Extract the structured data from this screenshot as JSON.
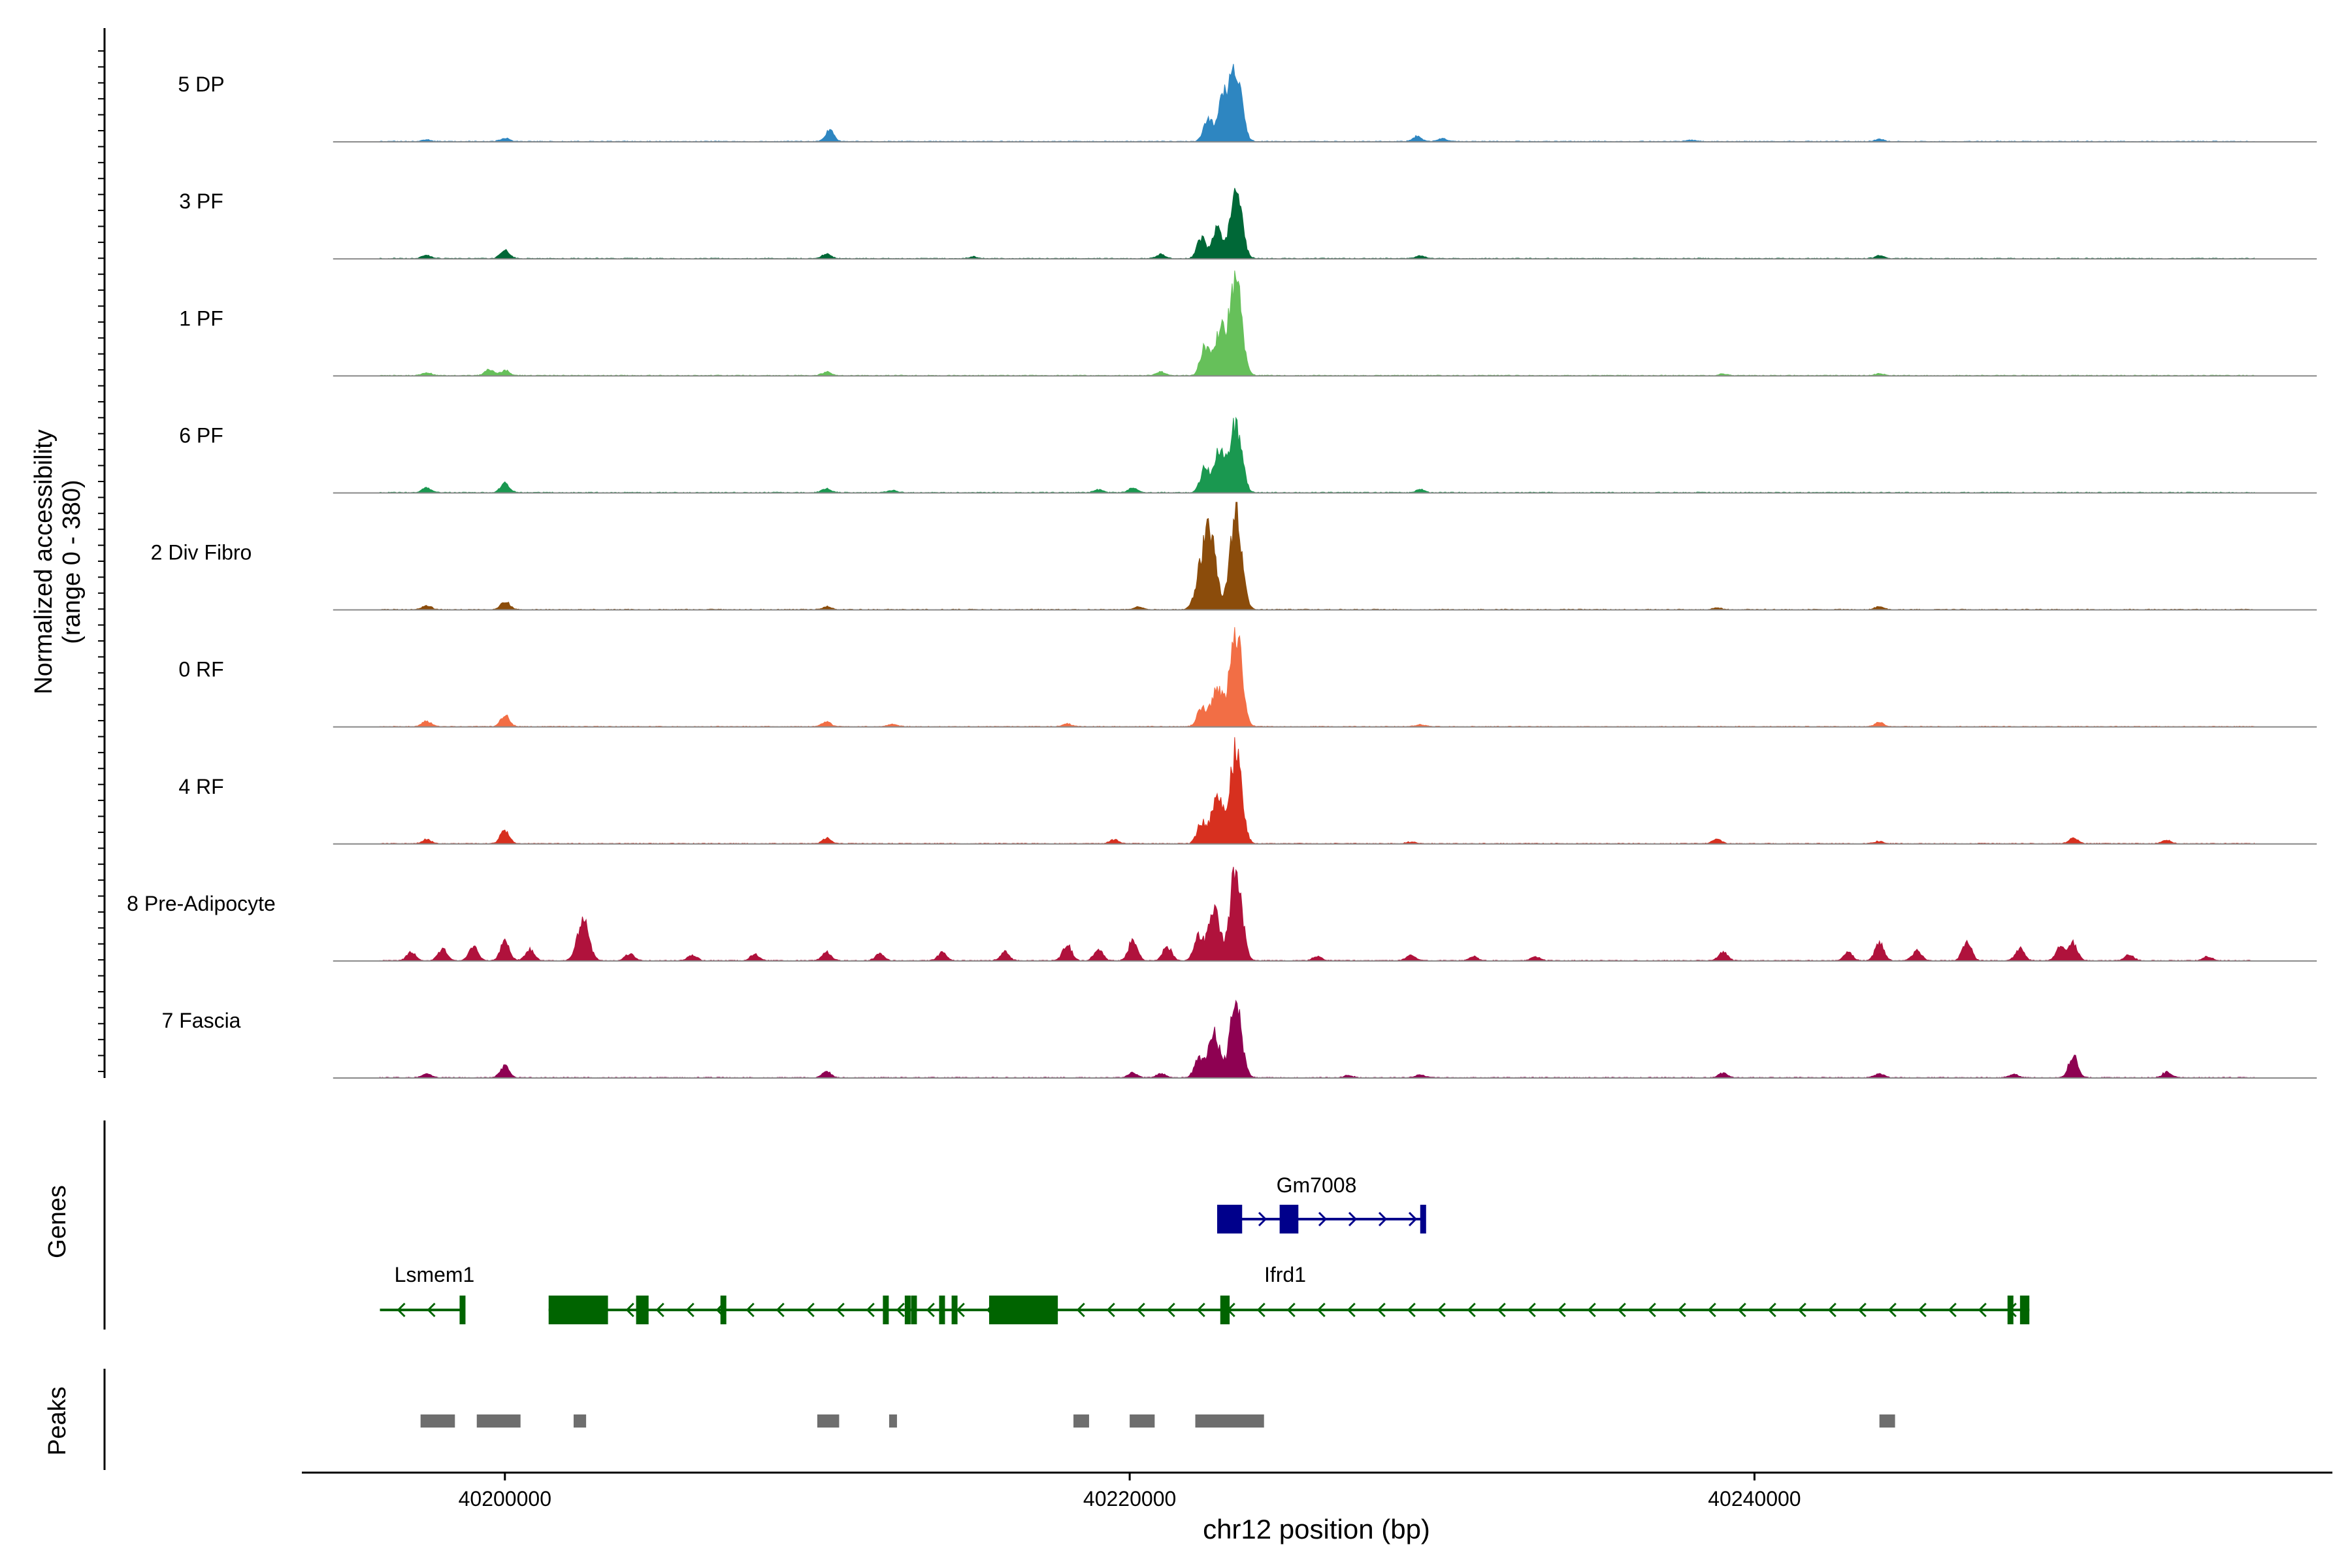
{
  "chart_data": {
    "type": "area",
    "title": "",
    "xlabel": "chr12 position (bp)",
    "ylabel_line1": "Normalized accessibility",
    "ylabel_line2": "(range 0 - 380)",
    "y_range": [
      0,
      380
    ],
    "xlim": [
      40193500,
      40258500
    ],
    "x_ticks": [
      40200000,
      40220000,
      40240000
    ],
    "x_tick_labels": [
      "40200000",
      "40220000",
      "40240000"
    ],
    "track_span": [
      40196000,
      40256000
    ],
    "tracks": [
      {
        "name": "5 DP",
        "color": "#2E86C1",
        "peaks": [
          [
            40223000,
            150
          ],
          [
            40223400,
            240
          ],
          [
            40222500,
            70
          ],
          [
            40210400,
            38
          ],
          [
            40200000,
            12
          ],
          [
            40197500,
            6
          ],
          [
            40229200,
            18
          ],
          [
            40230000,
            10
          ],
          [
            40244000,
            8
          ],
          [
            40238000,
            5
          ]
        ]
      },
      {
        "name": "3 PF",
        "color": "#006837",
        "peaks": [
          [
            40223400,
            250
          ],
          [
            40222800,
            110
          ],
          [
            40222300,
            70
          ],
          [
            40200000,
            30
          ],
          [
            40197500,
            12
          ],
          [
            40210300,
            16
          ],
          [
            40229300,
            10
          ],
          [
            40244000,
            10
          ],
          [
            40221000,
            14
          ],
          [
            40215000,
            6
          ]
        ]
      },
      {
        "name": "1 PF",
        "color": "#66C05A",
        "peaks": [
          [
            40223400,
            330
          ],
          [
            40222900,
            160
          ],
          [
            40222400,
            95
          ],
          [
            40199500,
            20
          ],
          [
            40200000,
            18
          ],
          [
            40197500,
            10
          ],
          [
            40210300,
            12
          ],
          [
            40221000,
            12
          ],
          [
            40244000,
            6
          ],
          [
            40239000,
            5
          ]
        ]
      },
      {
        "name": "6 PF",
        "color": "#1A9850",
        "peaks": [
          [
            40223400,
            240
          ],
          [
            40222900,
            150
          ],
          [
            40222400,
            80
          ],
          [
            40200000,
            32
          ],
          [
            40197500,
            18
          ],
          [
            40210300,
            14
          ],
          [
            40220100,
            16
          ],
          [
            40219000,
            10
          ],
          [
            40229300,
            10
          ],
          [
            40212400,
            8
          ]
        ]
      },
      {
        "name": "2 Div Fibro",
        "color": "#8B4C0B",
        "peaks": [
          [
            40223400,
            340
          ],
          [
            40222600,
            230
          ],
          [
            40222300,
            130
          ],
          [
            40200000,
            30
          ],
          [
            40197500,
            14
          ],
          [
            40210300,
            10
          ],
          [
            40220300,
            10
          ],
          [
            40244000,
            10
          ],
          [
            40238800,
            6
          ]
        ]
      },
      {
        "name": "0 RF",
        "color": "#F26E45",
        "peaks": [
          [
            40223400,
            340
          ],
          [
            40222800,
            140
          ],
          [
            40222300,
            60
          ],
          [
            40200000,
            40
          ],
          [
            40197500,
            20
          ],
          [
            40210300,
            16
          ],
          [
            40218000,
            10
          ],
          [
            40212400,
            8
          ],
          [
            40244000,
            14
          ],
          [
            40229300,
            6
          ]
        ]
      },
      {
        "name": "4 RF",
        "color": "#D7301F",
        "peaks": [
          [
            40223400,
            330
          ],
          [
            40222800,
            160
          ],
          [
            40222300,
            70
          ],
          [
            40200000,
            48
          ],
          [
            40197500,
            14
          ],
          [
            40210300,
            18
          ],
          [
            40219500,
            14
          ],
          [
            40238800,
            16
          ],
          [
            40250200,
            20
          ],
          [
            40253200,
            12
          ],
          [
            40244000,
            8
          ],
          [
            40229000,
            6
          ]
        ]
      },
      {
        "name": "8 Pre-Adipocyte",
        "color": "#B0123C",
        "peaks": [
          [
            40223400,
            330
          ],
          [
            40222700,
            170
          ],
          [
            40222200,
            80
          ],
          [
            40202500,
            140
          ],
          [
            40200000,
            70
          ],
          [
            40199000,
            50
          ],
          [
            40198000,
            40
          ],
          [
            40197000,
            30
          ],
          [
            40200800,
            40
          ],
          [
            40210300,
            30
          ],
          [
            40218000,
            55
          ],
          [
            40219000,
            40
          ],
          [
            40220100,
            70
          ],
          [
            40221200,
            50
          ],
          [
            40204000,
            24
          ],
          [
            40206000,
            20
          ],
          [
            40208000,
            22
          ],
          [
            40212000,
            25
          ],
          [
            40214000,
            28
          ],
          [
            40216000,
            30
          ],
          [
            40239000,
            30
          ],
          [
            40243000,
            28
          ],
          [
            40244000,
            60
          ],
          [
            40245200,
            35
          ],
          [
            40246800,
            70
          ],
          [
            40248500,
            45
          ],
          [
            40249800,
            50
          ],
          [
            40250200,
            60
          ],
          [
            40252000,
            20
          ],
          [
            40254500,
            14
          ],
          [
            40229000,
            20
          ],
          [
            40231000,
            14
          ],
          [
            40233000,
            14
          ],
          [
            40226000,
            14
          ]
        ]
      },
      {
        "name": "7 Fascia",
        "color": "#8E0152",
        "peaks": [
          [
            40223400,
            260
          ],
          [
            40222700,
            150
          ],
          [
            40222200,
            60
          ],
          [
            40200000,
            40
          ],
          [
            40197500,
            14
          ],
          [
            40210300,
            20
          ],
          [
            40220100,
            16
          ],
          [
            40221000,
            14
          ],
          [
            40250200,
            78
          ],
          [
            40253200,
            20
          ],
          [
            40248300,
            12
          ],
          [
            40244000,
            14
          ],
          [
            40239000,
            16
          ],
          [
            40227000,
            8
          ],
          [
            40229300,
            10
          ]
        ]
      }
    ],
    "genes": [
      {
        "name": "Gm7008",
        "color": "#00008B",
        "strand": "+",
        "start": 40222800,
        "end": 40229400,
        "exons": [
          [
            40222800,
            40223600
          ],
          [
            40224800,
            40225400
          ],
          [
            40229300,
            40229400
          ]
        ]
      },
      {
        "name": "Lsmem1",
        "color": "#006400",
        "strand": "-",
        "start": 40196000,
        "end": 40198600,
        "exons": [
          [
            40198550,
            40198600
          ]
        ]
      },
      {
        "name": "Ifrd1",
        "color": "#006400",
        "strand": "-",
        "start": 40201400,
        "end": 40248800,
        "exons": [
          [
            40201400,
            40203300
          ],
          [
            40204200,
            40204600
          ],
          [
            40206900,
            40207000
          ],
          [
            40212100,
            40212200
          ],
          [
            40212800,
            40212900
          ],
          [
            40213000,
            40213100
          ],
          [
            40213900,
            40214000
          ],
          [
            40214300,
            40214400
          ],
          [
            40215500,
            40217700
          ],
          [
            40222900,
            40223200
          ],
          [
            40248100,
            40248200
          ],
          [
            40248500,
            40248800
          ]
        ]
      }
    ],
    "peaks_track": [
      [
        40197300,
        40198400
      ],
      [
        40199100,
        40200500
      ],
      [
        40202200,
        40202600
      ],
      [
        40210000,
        40210700
      ],
      [
        40212300,
        40212500
      ],
      [
        40218200,
        40218700
      ],
      [
        40220000,
        40220800
      ],
      [
        40222100,
        40224300
      ],
      [
        40244000,
        40244500
      ]
    ],
    "panel_labels": {
      "genes": "Genes",
      "peaks": "Peaks"
    }
  }
}
